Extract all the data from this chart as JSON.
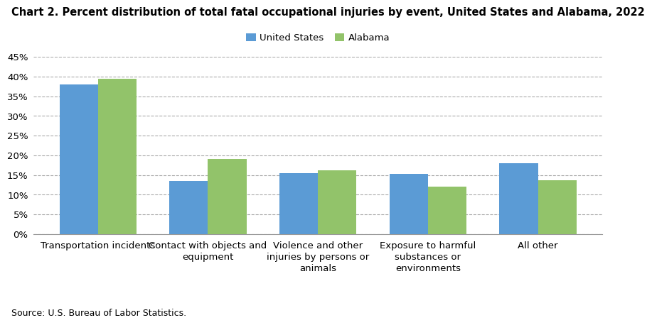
{
  "title": "Chart 2. Percent distribution of total fatal occupational injuries by event, United States and Alabama, 2022",
  "categories": [
    "Transportation incidents",
    "Contact with objects and\nequipment",
    "Violence and other\ninjuries by persons or\nanimals",
    "Exposure to harmful\nsubstances or\nenvironments",
    "All other"
  ],
  "us_values": [
    38.0,
    13.5,
    15.5,
    15.3,
    18.1
  ],
  "al_values": [
    39.4,
    19.1,
    16.3,
    12.1,
    13.6
  ],
  "us_color": "#5B9BD5",
  "al_color": "#92C36A",
  "us_label": "United States",
  "al_label": "Alabama",
  "ylim": [
    0,
    45
  ],
  "yticks": [
    0,
    5,
    10,
    15,
    20,
    25,
    30,
    35,
    40,
    45
  ],
  "source": "Source: U.S. Bureau of Labor Statistics.",
  "background_color": "#ffffff",
  "grid_color": "#aaaaaa",
  "title_fontsize": 10.5,
  "tick_fontsize": 9.5,
  "legend_fontsize": 9.5,
  "source_fontsize": 9
}
